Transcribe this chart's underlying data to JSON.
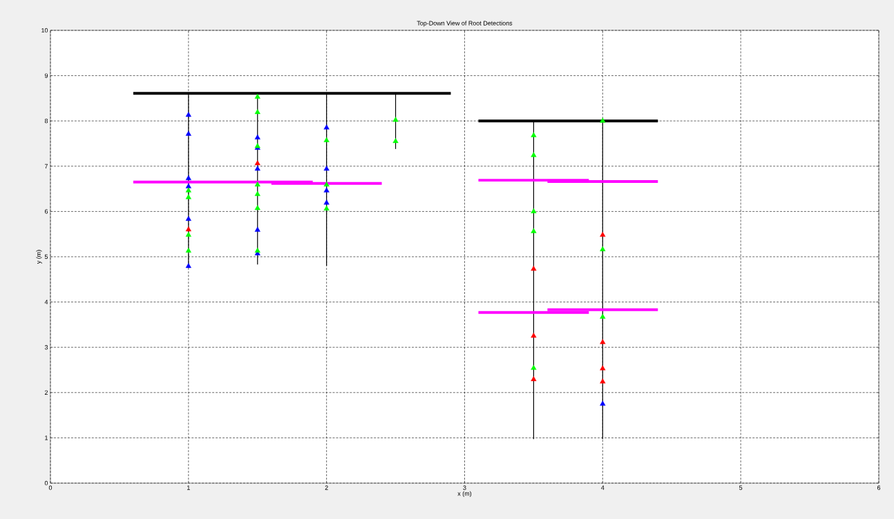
{
  "chart_data": {
    "type": "line",
    "title": "Top-Down View of Root Detections",
    "xlabel": "x (m)",
    "ylabel": "y (m)",
    "xlim": [
      0,
      6
    ],
    "ylim": [
      0,
      10
    ],
    "xticks": [
      0,
      1,
      2,
      3,
      4,
      5,
      6
    ],
    "yticks": [
      0,
      1,
      2,
      3,
      4,
      5,
      6,
      7,
      8,
      9,
      10
    ],
    "grid": true,
    "series": [
      {
        "color": "#000000",
        "x": [
          0.6,
          2.9
        ],
        "values": [
          8.61,
          8.61
        ]
      },
      {
        "color": "#000000",
        "x": [
          3.1,
          4.4
        ],
        "values": [
          8.0,
          8.0
        ]
      },
      {
        "color": "#000000",
        "x": [
          1,
          1
        ],
        "values": [
          8.61,
          4.75
        ]
      },
      {
        "color": "#000000",
        "x": [
          1.5,
          1.5
        ],
        "values": [
          8.61,
          4.83
        ]
      },
      {
        "color": "#000000",
        "x": [
          2,
          2
        ],
        "values": [
          8.61,
          4.8
        ]
      },
      {
        "color": "#000000",
        "x": [
          2.5,
          2.5
        ],
        "values": [
          8.61,
          7.38
        ]
      },
      {
        "color": "#000000",
        "x": [
          3.5,
          3.5
        ],
        "values": [
          8.0,
          0.97
        ]
      },
      {
        "color": "#000000",
        "x": [
          4,
          4
        ],
        "values": [
          8.0,
          0.97
        ]
      },
      {
        "color": "#ff00ff",
        "x": [
          0.6,
          1.9
        ],
        "values": [
          6.65,
          6.65
        ]
      },
      {
        "color": "#ff00ff",
        "x": [
          1.6,
          2.4
        ],
        "values": [
          6.62,
          6.62
        ]
      },
      {
        "color": "#ff00ff",
        "x": [
          3.1,
          3.9
        ],
        "values": [
          6.69,
          6.69
        ]
      },
      {
        "color": "#ff00ff",
        "x": [
          3.6,
          4.4
        ],
        "values": [
          6.66,
          6.66
        ]
      },
      {
        "color": "#ff00ff",
        "x": [
          3.1,
          3.9
        ],
        "values": [
          3.77,
          3.77
        ]
      },
      {
        "color": "#ff00ff",
        "x": [
          3.6,
          4.4
        ],
        "values": [
          3.83,
          3.83
        ]
      },
      {
        "type": "scatter",
        "marker": "triangle",
        "color": "#0000ff",
        "x": [
          1,
          1,
          1,
          1,
          1,
          1,
          1.5,
          1.5,
          1.5,
          1.5,
          1.5,
          2,
          2,
          2,
          2,
          4
        ],
        "values": [
          8.13,
          7.71,
          6.73,
          6.55,
          5.83,
          4.79,
          7.63,
          7.4,
          6.94,
          5.59,
          5.07,
          7.85,
          6.94,
          6.46,
          6.19,
          1.75
        ]
      },
      {
        "type": "scatter",
        "marker": "triangle",
        "color": "#00ff00",
        "x": [
          1,
          1,
          1,
          1,
          1.5,
          1.5,
          1.5,
          1.5,
          1.5,
          1.5,
          1.5,
          2,
          2,
          2,
          2.5,
          2.5,
          3.5,
          3.5,
          3.5,
          3.5,
          3.5,
          4,
          4,
          4
        ],
        "values": [
          6.46,
          6.31,
          5.48,
          5.13,
          8.53,
          8.19,
          7.44,
          6.59,
          6.38,
          6.07,
          5.13,
          7.57,
          6.59,
          6.06,
          8.02,
          7.55,
          7.68,
          7.24,
          6.0,
          5.56,
          2.54,
          8.0,
          5.16,
          3.67
        ]
      },
      {
        "type": "scatter",
        "marker": "triangle",
        "color": "#ff0000",
        "x": [
          1,
          1.5,
          3.5,
          3.5,
          3.5,
          4,
          4,
          4,
          4
        ],
        "values": [
          5.6,
          7.06,
          4.73,
          3.25,
          2.29,
          5.48,
          3.11,
          2.53,
          2.24
        ]
      }
    ]
  }
}
